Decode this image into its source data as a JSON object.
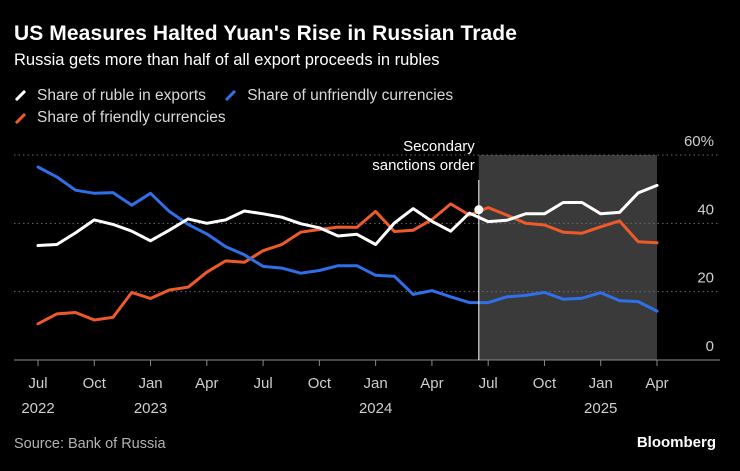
{
  "header": {
    "title": "US Measures Halted Yuan's Rise in Russian Trade",
    "subtitle": "Russia gets more than half of all export proceeds in rubles"
  },
  "footer": {
    "source": "Source: Bank of Russia",
    "brand": "Bloomberg"
  },
  "colors": {
    "background": "#000000",
    "ruble": "#ffffff",
    "unfriendly": "#2f6fe8",
    "friendly": "#ee5a2a",
    "shade": "#3a3a3a",
    "grid": "#6a6a6a"
  },
  "chart_data": {
    "type": "line",
    "title": "US Measures Halted Yuan's Rise in Russian Trade",
    "subtitle": "Russia gets more than half of all export proceeds in rubles",
    "x": [
      "2022-07",
      "2022-08",
      "2022-09",
      "2022-10",
      "2022-11",
      "2022-12",
      "2023-01",
      "2023-02",
      "2023-03",
      "2023-04",
      "2023-05",
      "2023-06",
      "2023-07",
      "2023-08",
      "2023-09",
      "2023-10",
      "2023-11",
      "2023-12",
      "2023-01b",
      "2024-02",
      "2024-03",
      "2024-04",
      "2024-05",
      "2024-06",
      "2024-07",
      "2024-08",
      "2024-09",
      "2024-10",
      "2024-11",
      "2024-12",
      "2025-01",
      "2025-02",
      "2025-03",
      "2025-04"
    ],
    "series": [
      {
        "name": "Share of ruble in exports",
        "color": "#ffffff",
        "values": [
          33.5,
          33.8,
          37.2,
          41.0,
          39.7,
          37.7,
          34.9,
          38.0,
          41.3,
          40.0,
          41.0,
          43.6,
          42.8,
          41.8,
          39.9,
          38.7,
          36.3,
          36.8,
          33.8,
          40.1,
          44.3,
          40.6,
          37.7,
          43.0,
          40.5,
          40.9,
          42.8,
          42.8,
          46.1,
          46.1,
          42.8,
          43.2,
          48.9,
          51.1
        ]
      },
      {
        "name": "Share of unfriendly currencies",
        "color": "#2f6fe8",
        "values": [
          56.5,
          53.6,
          49.7,
          48.8,
          49.0,
          45.3,
          48.8,
          43.5,
          39.7,
          36.9,
          33.2,
          30.8,
          27.4,
          26.9,
          25.4,
          26.2,
          27.6,
          27.6,
          24.8,
          24.5,
          19.2,
          20.3,
          18.5,
          16.8,
          16.8,
          18.5,
          18.9,
          19.8,
          17.8,
          18.1,
          19.7,
          17.4,
          17.1,
          14.3
        ]
      },
      {
        "name": "Share of friendly currencies",
        "color": "#ee5a2a",
        "values": [
          10.6,
          13.5,
          13.9,
          11.7,
          12.5,
          19.8,
          18.0,
          20.5,
          21.3,
          25.7,
          29.0,
          28.6,
          32.0,
          33.8,
          37.4,
          38.2,
          38.9,
          38.8,
          43.5,
          37.6,
          38.0,
          41.1,
          45.7,
          42.4,
          44.6,
          42.4,
          40.0,
          39.5,
          37.4,
          37.1,
          39.0,
          40.7,
          34.6,
          34.3
        ]
      }
    ],
    "y_range": [
      0,
      60
    ],
    "y_tick_labels": [
      "0",
      "20",
      "40",
      "60%"
    ],
    "y_ticks": [
      0,
      20,
      40,
      60
    ],
    "x_tick_labels": [
      {
        "month": "Jul",
        "year": "2022"
      },
      {
        "month": "Oct",
        "year": ""
      },
      {
        "month": "Jan",
        "year": "2023"
      },
      {
        "month": "Apr",
        "year": ""
      },
      {
        "month": "Jul",
        "year": ""
      },
      {
        "month": "Oct",
        "year": ""
      },
      {
        "month": "Jan",
        "year": "2024"
      },
      {
        "month": "Apr",
        "year": ""
      },
      {
        "month": "Jul",
        "year": ""
      },
      {
        "month": "Oct",
        "year": ""
      },
      {
        "month": "Jan",
        "year": "2025"
      },
      {
        "month": "Apr",
        "year": ""
      }
    ],
    "x_tick_months": [
      0,
      3,
      6,
      9,
      12,
      15,
      18,
      21,
      24,
      27,
      30,
      33
    ],
    "annotation": {
      "label_line1": "Secondary",
      "label_line2": "sanctions order",
      "start_index": 23.5,
      "end_index": 33,
      "marker_series": 0,
      "marker_index": 23.5,
      "marker_value": 44.0
    },
    "legend_position": "top-left",
    "grid": "horizontal-dotted"
  }
}
